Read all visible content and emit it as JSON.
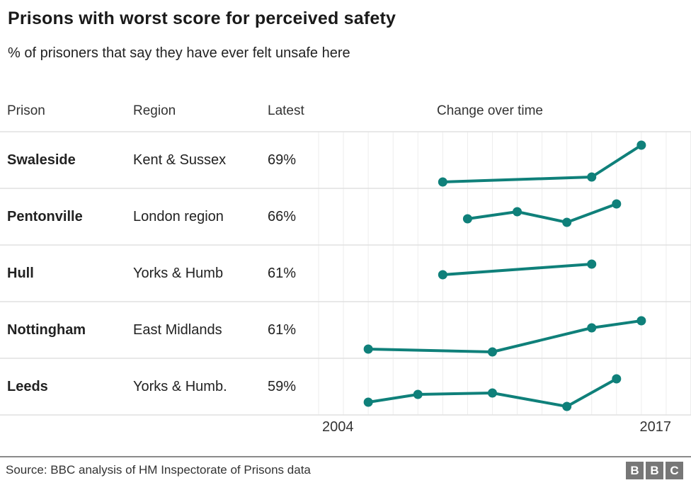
{
  "title": "Prisons with worst score for perceived safety",
  "subtitle": "% of prisoners that say they have ever felt unsafe here",
  "columns": {
    "prison": "Prison",
    "region": "Region",
    "latest": "Latest",
    "change": "Change over time"
  },
  "rows": [
    {
      "prison": "Swaleside",
      "region": "Kent & Sussex",
      "latest": "69%"
    },
    {
      "prison": "Pentonville",
      "region": "London region",
      "latest": "66%"
    },
    {
      "prison": "Hull",
      "region": "Yorks & Humb",
      "latest": "61%"
    },
    {
      "prison": "Nottingham",
      "region": "East Midlands",
      "latest": "61%"
    },
    {
      "prison": "Leeds",
      "region": "Yorks & Humb.",
      "latest": "59%"
    }
  ],
  "axis": {
    "start_label": "2004",
    "end_label": "2017"
  },
  "source": "Source: BBC analysis of HM Inspectorate of Prisons data",
  "logo": {
    "letters": [
      "B",
      "B",
      "C"
    ]
  },
  "colors": {
    "line": "#0f807a",
    "grid": "#ededed",
    "separator": "#e1e1e1",
    "text": "#222222",
    "footer_rule": "#8a8a8a",
    "logo_gray": "#777777"
  },
  "chart_data": {
    "type": "line",
    "title": "Change over time",
    "subtitle_metric": "% of prisoners that say they have ever felt unsafe here",
    "x_range": [
      2004,
      2017
    ],
    "x_tick_labels": [
      "2004",
      "2017"
    ],
    "grid": "vertical-yearly",
    "legend": "none",
    "row_value_window": [
      8,
      88
    ],
    "series": [
      {
        "name": "Swaleside",
        "latest": 69,
        "points": [
          [
            2008,
            17
          ],
          [
            2014,
            24
          ],
          [
            2016,
            69
          ]
        ]
      },
      {
        "name": "Pentonville",
        "latest": 66,
        "points": [
          [
            2009,
            45
          ],
          [
            2011,
            55
          ],
          [
            2013,
            40
          ],
          [
            2015,
            66
          ]
        ]
      },
      {
        "name": "Hull",
        "latest": 61,
        "points": [
          [
            2008,
            46
          ],
          [
            2014,
            61
          ]
        ]
      },
      {
        "name": "Nottingham",
        "latest": 61,
        "points": [
          [
            2005,
            21
          ],
          [
            2010,
            17
          ],
          [
            2014,
            51
          ],
          [
            2016,
            61
          ]
        ]
      },
      {
        "name": "Leeds",
        "latest": 59,
        "points": [
          [
            2005,
            26
          ],
          [
            2007,
            37
          ],
          [
            2010,
            39
          ],
          [
            2013,
            20
          ],
          [
            2015,
            59
          ]
        ]
      }
    ]
  }
}
